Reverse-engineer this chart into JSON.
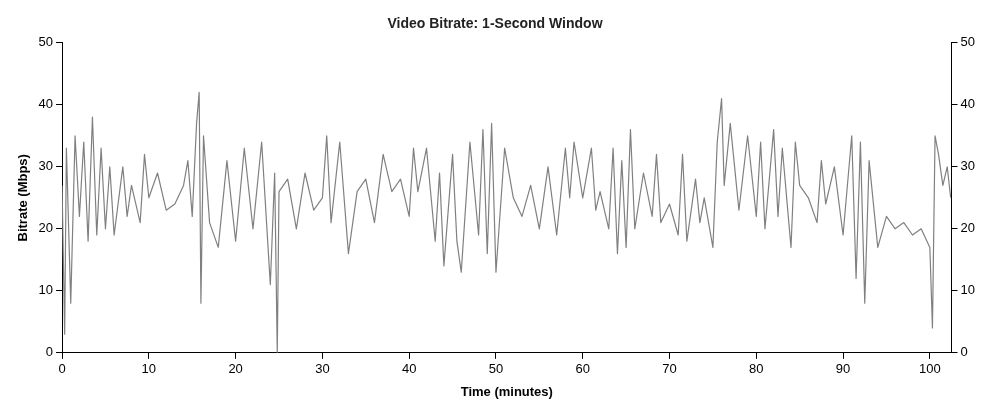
{
  "chart_data": {
    "type": "line",
    "title": "Video Bitrate: 1-Second Window",
    "xlabel": "Time (minutes)",
    "ylabel": "Bitrate (Mbps)",
    "xlim": [
      0,
      102.5
    ],
    "xticks": [
      0,
      10,
      20,
      30,
      40,
      50,
      60,
      70,
      80,
      90,
      100
    ],
    "ylim": [
      0,
      50
    ],
    "yticks": [
      0,
      10,
      20,
      30,
      40,
      50
    ],
    "y2lim": [
      0,
      50
    ],
    "y2ticks": [
      0,
      10,
      20,
      30,
      40,
      50
    ],
    "grid": false,
    "legend": false,
    "marker": "none",
    "line_style": "solid",
    "series": [
      {
        "color": "#808080",
        "x": [
          0,
          0.3,
          0.5,
          1,
          1.5,
          2,
          2.5,
          3,
          3.5,
          4,
          4.5,
          5,
          5.5,
          6,
          7,
          7.5,
          8,
          9,
          9.5,
          10,
          11,
          12,
          13,
          14,
          14.5,
          15,
          15.5,
          15.8,
          16,
          16.3,
          17,
          18,
          19,
          20,
          21,
          22,
          23,
          24,
          24.5,
          24.8,
          25,
          26,
          27,
          28,
          29,
          30,
          30.5,
          31,
          32,
          33,
          34,
          35,
          36,
          37,
          38,
          39,
          40,
          40.5,
          41,
          42,
          43,
          43.5,
          44,
          45,
          45.5,
          46,
          47,
          48,
          48.5,
          49,
          49.5,
          50,
          51,
          52,
          53,
          54,
          55,
          56,
          57,
          58,
          58.5,
          59,
          60,
          61,
          61.5,
          62,
          63,
          63.5,
          64,
          64.5,
          65,
          65.5,
          66,
          67,
          68,
          68.5,
          69,
          70,
          71,
          71.5,
          72,
          73,
          73.5,
          74,
          75,
          75.5,
          76,
          76.3,
          77,
          78,
          79,
          80,
          80.5,
          81,
          82,
          82.5,
          83,
          84,
          84.5,
          85,
          86,
          87,
          87.5,
          88,
          89,
          90,
          91,
          91.5,
          92,
          92.5,
          93,
          94,
          95,
          96,
          97,
          98,
          99,
          100,
          100.3,
          100.6,
          101,
          101.5,
          102,
          102.4
        ],
        "values": [
          27,
          3,
          33,
          8,
          35,
          22,
          34,
          18,
          38,
          19,
          33,
          20,
          30,
          19,
          30,
          22,
          27,
          21,
          32,
          25,
          29,
          23,
          24,
          27,
          31,
          22,
          37,
          42,
          8,
          35,
          21,
          17,
          31,
          18,
          33,
          20,
          34,
          11,
          29,
          0,
          26,
          28,
          20,
          29,
          23,
          25,
          35,
          21,
          34,
          16,
          26,
          28,
          21,
          32,
          26,
          28,
          22,
          33,
          26,
          33,
          18,
          29,
          14,
          32,
          18,
          13,
          34,
          19,
          36,
          16,
          37,
          13,
          33,
          25,
          22,
          27,
          20,
          30,
          19,
          33,
          25,
          34,
          25,
          33,
          23,
          26,
          20,
          33,
          16,
          31,
          17,
          36,
          20,
          29,
          22,
          32,
          21,
          24,
          19,
          32,
          18,
          28,
          21,
          25,
          17,
          34,
          41,
          27,
          37,
          23,
          35,
          22,
          34,
          20,
          36,
          22,
          33,
          17,
          34,
          27,
          25,
          21,
          31,
          24,
          30,
          19,
          35,
          12,
          34,
          8,
          31,
          17,
          22,
          20,
          21,
          19,
          20,
          17,
          4,
          35,
          32,
          27,
          30,
          25
        ]
      }
    ]
  }
}
